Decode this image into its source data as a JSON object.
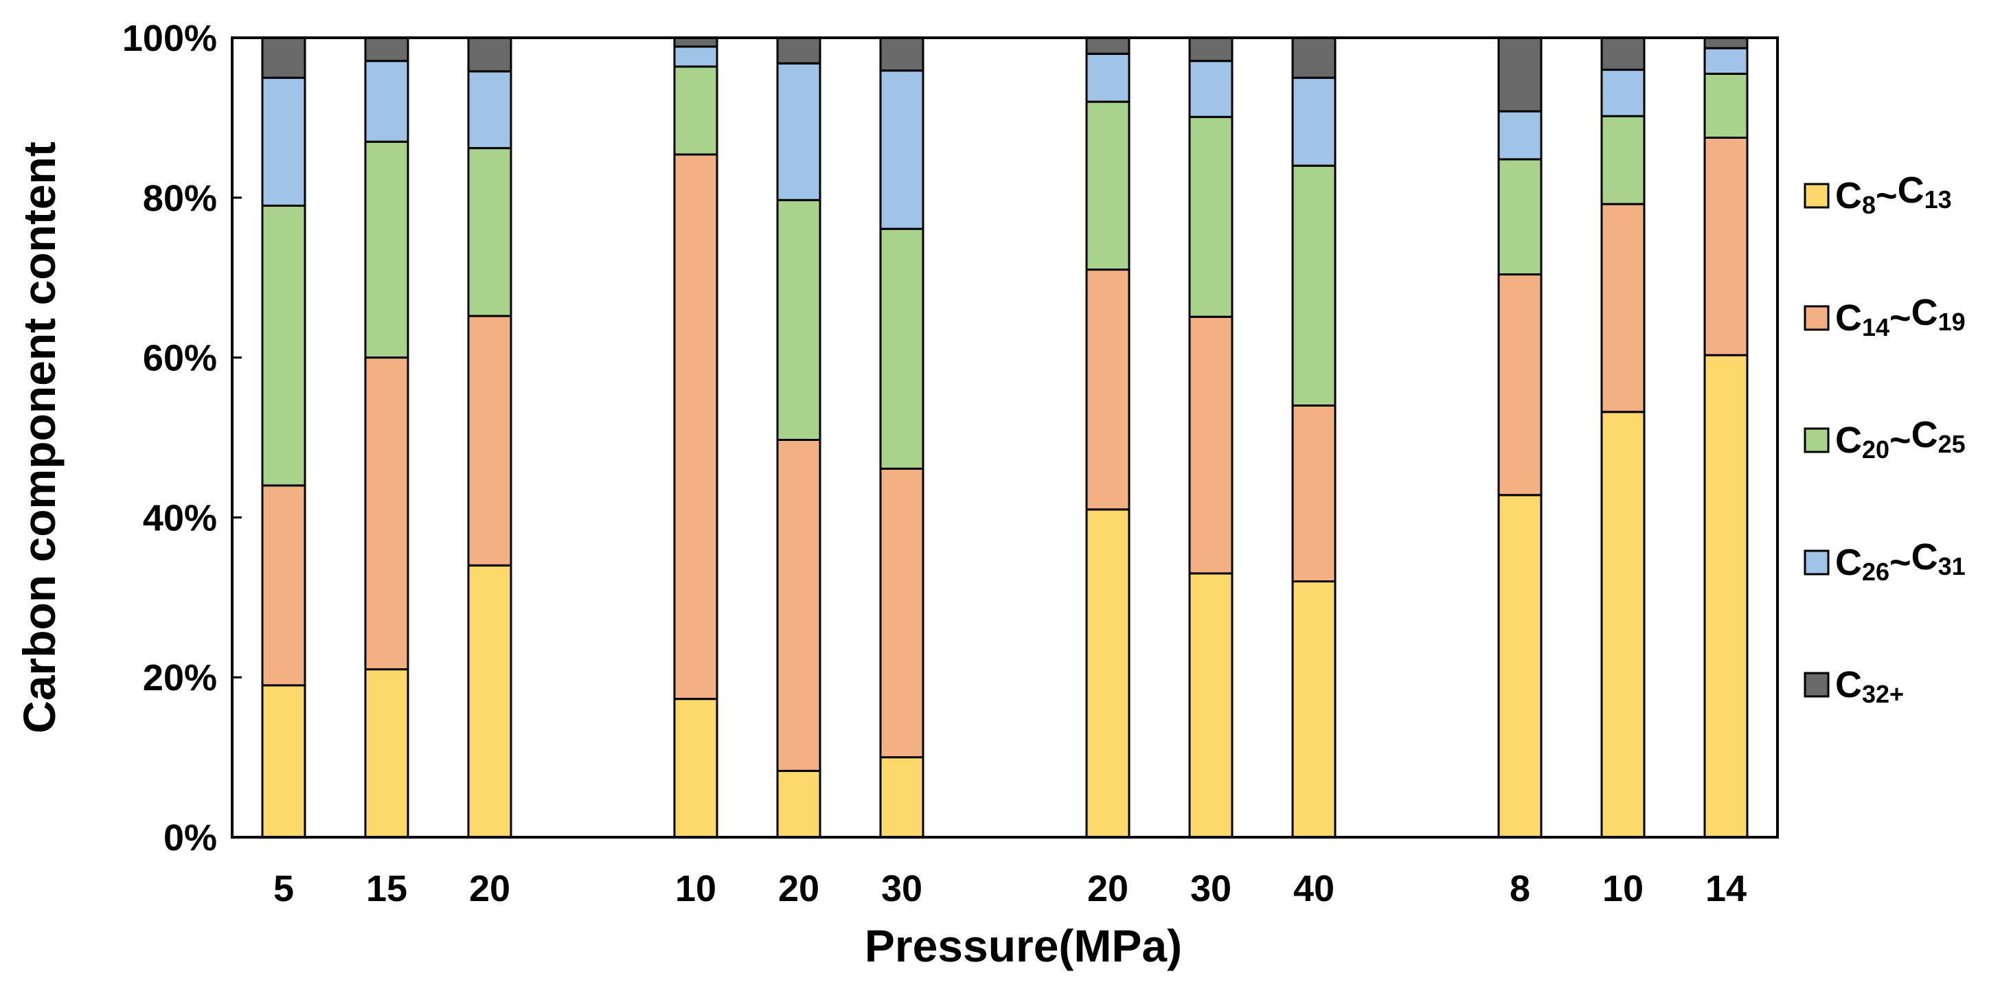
{
  "chart_data": {
    "type": "bar",
    "stacked": true,
    "normalized": true,
    "xlabel": "Pressure(MPa)",
    "ylabel": "Carbon component content",
    "ylim": [
      0,
      100
    ],
    "y_ticks": [
      "0%",
      "20%",
      "40%",
      "60%",
      "80%",
      "100%"
    ],
    "grid": false,
    "legend_position": "right",
    "groups": [
      {
        "categories": [
          "5",
          "15",
          "20"
        ]
      },
      {
        "categories": [
          "10",
          "20",
          "30"
        ]
      },
      {
        "categories": [
          "20",
          "30",
          "40"
        ]
      },
      {
        "categories": [
          "8",
          "10",
          "14"
        ]
      }
    ],
    "categories": [
      "5",
      "15",
      "20",
      "10",
      "20",
      "30",
      "20",
      "30",
      "40",
      "8",
      "10",
      "14"
    ],
    "series": [
      {
        "name": "C8~C13",
        "main": "C",
        "sub1": "8",
        "sep": "~",
        "main2": "C",
        "sub2": "13",
        "color": "#FCD96A",
        "values": [
          19,
          21,
          34,
          17.3,
          8.3,
          10,
          41,
          33,
          32,
          42.8,
          53.2,
          60.3
        ]
      },
      {
        "name": "C14~C19",
        "main": "C",
        "sub1": "14",
        "sep": "~",
        "main2": "C",
        "sub2": "19",
        "color": "#F3B083",
        "values": [
          25,
          39,
          31.2,
          68.1,
          41.4,
          36.1,
          30,
          32.1,
          22,
          27.6,
          26,
          27.2
        ]
      },
      {
        "name": "C20~C25",
        "main": "C",
        "sub1": "20",
        "sep": "~",
        "main2": "C",
        "sub2": "25",
        "color": "#A9D38D",
        "values": [
          35,
          27,
          21,
          11,
          30,
          30,
          21,
          25,
          30,
          14.4,
          11,
          8
        ]
      },
      {
        "name": "C26~C31",
        "main": "C",
        "sub1": "26",
        "sep": "~",
        "main2": "C",
        "sub2": "31",
        "color": "#A0C4E8",
        "values": [
          16,
          10.1,
          9.6,
          2.5,
          17.1,
          19.8,
          6,
          7,
          11,
          6,
          5.8,
          3.2
        ]
      },
      {
        "name": "C32+",
        "main": "C",
        "sub1": "32+",
        "sep": "",
        "main2": "",
        "sub2": "",
        "color": "#696969",
        "values": [
          5,
          2.9,
          4.2,
          1.1,
          3.2,
          4.1,
          2,
          2.9,
          5,
          9.2,
          4,
          1.3
        ]
      }
    ]
  }
}
